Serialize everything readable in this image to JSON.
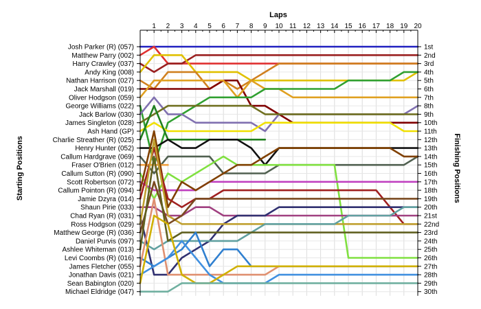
{
  "chart_data": {
    "type": "line",
    "xlabel": "Laps",
    "ylabel_left": "Starting Positions",
    "ylabel_right": "Finishing Positions",
    "x": [
      0,
      1,
      2,
      3,
      4,
      5,
      6,
      7,
      8,
      9,
      10,
      11,
      12,
      13,
      14,
      15,
      16,
      17,
      18,
      19,
      20
    ],
    "x_tick_labels": [
      "1",
      "2",
      "3",
      "4",
      "5",
      "6",
      "7",
      "8",
      "9",
      "10",
      "11",
      "12",
      "13",
      "14",
      "15",
      "16",
      "17",
      "18",
      "19",
      "20"
    ],
    "ylim": [
      1,
      30
    ],
    "y_inverted": true,
    "grid": true,
    "start_labels": [
      "Josh Parker (R) (057)",
      "Matthew Parry (002)",
      "Harry Crawley (037)",
      "Andy King (008)",
      "Nathan Harrison (027)",
      "Jack Marshall (019)",
      "Oliver Hodgson (059)",
      "George Williams (022)",
      "Jack Barlow (030)",
      "James Singleton (028)",
      "Ash Hand (GP)",
      "Charlie Streather (R) (025)",
      "Henry Hunter (052)",
      "Callum Hardgrave (069)",
      "Fraser O'Brien (012)",
      "Callum Sutton  (R) (090)",
      "Scott Robertson (072)",
      "Callum Pointon  (R) (094)",
      "Jamie Dzyra (014)",
      "Shaun Pirie (033)",
      "Chad Ryan (R) (031)",
      "Ross Hodgson (029)",
      "Matthew George (R) (036)",
      "Daniel Purvis (097)",
      "Ashlee Whiteman (013)",
      "Levi Coombs (R) (016)",
      "James Fletcher (055)",
      "Jonathan Davis (021)",
      "Sean Babington (020)",
      "Michael Eldridge (047)"
    ],
    "finish_labels": [
      "1st",
      "2nd",
      "3rd",
      "4th",
      "5th",
      "6th",
      "7th",
      "8th",
      "9th",
      "10th",
      "11th",
      "12th",
      "13th",
      "14th",
      "15th",
      "16th",
      "17th",
      "18th",
      "19th",
      "20th",
      "21st",
      "22nd",
      "23rd",
      "24th",
      "25th",
      "26th",
      "27th",
      "28th",
      "29th",
      "30th"
    ],
    "series": [
      {
        "color": "#2020c0",
        "values": [
          1,
          1,
          1,
          1,
          1,
          1,
          1,
          1,
          1,
          1,
          1,
          1,
          1,
          1,
          1,
          1,
          1,
          1,
          1,
          1,
          1
        ]
      },
      {
        "color": "#e03030",
        "values": [
          2,
          1,
          3,
          3,
          3,
          3,
          3,
          3,
          3,
          3,
          3,
          3,
          3,
          3,
          3,
          3,
          3,
          3,
          3,
          3,
          3
        ]
      },
      {
        "color": "#9a2020",
        "values": [
          3,
          4,
          3,
          3,
          2,
          2,
          2,
          2,
          2,
          2,
          2,
          2,
          2,
          2,
          2,
          2,
          2,
          2,
          2,
          2,
          2
        ]
      },
      {
        "color": "#e0c000",
        "values": [
          4,
          2,
          2,
          2,
          4,
          4,
          4,
          4,
          5,
          5,
          5,
          5,
          5,
          5,
          5,
          5,
          5,
          5,
          5,
          5,
          4
        ]
      },
      {
        "color": "#d08020",
        "values": [
          5,
          6,
          4,
          4,
          4,
          6,
          5,
          6,
          5,
          4,
          3,
          3,
          3,
          3,
          3,
          3,
          3,
          3,
          3,
          3,
          3
        ]
      },
      {
        "color": "#800000",
        "values": [
          6,
          6,
          6,
          6,
          6,
          6,
          5,
          5,
          8,
          8,
          9,
          10,
          10,
          10,
          10,
          10,
          10,
          10,
          10,
          10,
          10
        ]
      },
      {
        "color": "#e0a020",
        "values": [
          7,
          5,
          5,
          5,
          5,
          5,
          5,
          7,
          5,
          6,
          6,
          7,
          7,
          7,
          7,
          7,
          7,
          7,
          7,
          7,
          7
        ]
      },
      {
        "color": "#30a030",
        "values": [
          8,
          15,
          10,
          9,
          8,
          7,
          7,
          7,
          7,
          6,
          6,
          6,
          6,
          6,
          6,
          5,
          5,
          5,
          5,
          4,
          4
        ]
      },
      {
        "color": "#8070b0",
        "values": [
          9,
          7,
          9,
          9,
          10,
          10,
          10,
          10,
          10,
          11,
          9,
          9,
          9,
          9,
          9,
          9,
          9,
          9,
          9,
          9,
          8
        ]
      },
      {
        "color": "#707020",
        "values": [
          10,
          9,
          8,
          8,
          8,
          8,
          8,
          8,
          8,
          9,
          9,
          9,
          9,
          9,
          9,
          9,
          9,
          9,
          9,
          9,
          9
        ]
      },
      {
        "color": "#f0e000",
        "values": [
          11,
          10,
          11,
          11,
          11,
          11,
          11,
          11,
          11,
          10,
          10,
          10,
          10,
          10,
          10,
          10,
          10,
          10,
          10,
          11,
          11
        ]
      },
      {
        "color": "#208020",
        "values": [
          12,
          8,
          12,
          12,
          12,
          12,
          12,
          12,
          12,
          12,
          null,
          null,
          null,
          null,
          null,
          null,
          null,
          null,
          null,
          null,
          null
        ]
      },
      {
        "color": "#101010",
        "values": [
          13,
          13,
          12,
          13,
          13,
          12,
          12,
          12,
          13,
          15,
          13,
          13,
          13,
          13,
          13,
          13,
          13,
          13,
          13,
          13,
          13
        ]
      },
      {
        "color": "#506050",
        "values": [
          14,
          16,
          14,
          14,
          14,
          14,
          16,
          16,
          16,
          16,
          15,
          15,
          15,
          15,
          15,
          15,
          15,
          15,
          15,
          15,
          14
        ]
      },
      {
        "color": "#f0a040",
        "values": [
          15,
          15,
          15,
          null,
          null,
          null,
          null,
          null,
          null,
          null,
          null,
          null,
          null,
          null,
          null,
          null,
          null,
          null,
          null,
          null,
          null
        ]
      },
      {
        "color": "#80e040",
        "values": [
          16,
          19,
          16,
          17,
          16,
          15,
          14,
          15,
          15,
          15,
          15,
          15,
          15,
          15,
          15,
          26,
          26,
          26,
          26,
          26,
          26
        ]
      },
      {
        "color": "#c040c0",
        "values": [
          17,
          18,
          18,
          18,
          18,
          17,
          17,
          17,
          17,
          17,
          17,
          17,
          17,
          17,
          17,
          17,
          17,
          17,
          17,
          17,
          17
        ]
      },
      {
        "color": "#804000",
        "values": [
          18,
          11,
          20,
          17,
          18,
          17,
          16,
          15,
          15,
          14,
          13,
          13,
          13,
          13,
          13,
          13,
          13,
          13,
          13,
          14,
          14
        ]
      },
      {
        "color": "#a02020",
        "values": [
          19,
          13,
          19,
          20,
          19,
          19,
          18,
          18,
          18,
          18,
          18,
          18,
          18,
          18,
          18,
          18,
          18,
          18,
          20,
          22,
          22
        ]
      },
      {
        "color": "#a04080",
        "values": [
          20,
          20,
          21,
          21,
          20,
          20,
          21,
          21,
          21,
          21,
          21,
          21,
          21,
          21,
          21,
          21,
          21,
          21,
          21,
          21,
          21
        ]
      },
      {
        "color": "#303070",
        "values": [
          21,
          28,
          28,
          26,
          25,
          24,
          22,
          21,
          21,
          21,
          20,
          20,
          20,
          20,
          20,
          20,
          20,
          20,
          20,
          20,
          20
        ]
      },
      {
        "color": "#c0a030",
        "values": [
          22,
          12,
          21,
          22,
          22,
          22,
          22,
          22,
          22,
          22,
          22,
          22,
          22,
          22,
          22,
          22,
          22,
          22,
          22,
          22,
          22
        ]
      },
      {
        "color": "#7a4a20",
        "values": [
          23,
          17,
          22,
          21,
          19,
          19,
          19,
          19,
          19,
          19,
          19,
          19,
          19,
          19,
          19,
          19,
          19,
          19,
          19,
          19,
          19
        ]
      },
      {
        "color": "#60a0a0",
        "values": [
          24,
          25,
          24,
          24,
          24,
          24,
          24,
          24,
          23,
          22,
          22,
          22,
          22,
          22,
          22,
          21,
          21,
          21,
          21,
          20,
          20
        ]
      },
      {
        "color": "#606020",
        "values": [
          25,
          14,
          24,
          23,
          23,
          23,
          23,
          23,
          23,
          23,
          23,
          23,
          23,
          23,
          23,
          23,
          23,
          23,
          23,
          23,
          23
        ]
      },
      {
        "color": "#3080d0",
        "values": [
          26,
          27,
          26,
          25,
          23,
          27,
          25,
          25,
          27,
          27,
          27,
          27,
          27,
          27,
          27,
          27,
          27,
          27,
          27,
          27,
          null
        ]
      },
      {
        "color": "#e09070",
        "values": [
          27,
          19,
          28,
          28,
          28,
          28,
          28,
          28,
          28,
          28,
          27,
          27,
          27,
          27,
          27,
          27,
          27,
          27,
          27,
          27,
          27
        ]
      },
      {
        "color": "#4090e0",
        "values": [
          28,
          27,
          26,
          24,
          26,
          28,
          29,
          29,
          29,
          29,
          28,
          28,
          28,
          28,
          28,
          28,
          28,
          28,
          28,
          28,
          28
        ]
      },
      {
        "color": "#d0b000",
        "values": [
          29,
          21,
          22,
          28,
          29,
          29,
          28,
          27,
          27,
          27,
          27,
          27,
          27,
          27,
          27,
          27,
          27,
          27,
          27,
          27,
          27
        ]
      },
      {
        "color": "#70b0a0",
        "values": [
          30,
          30,
          30,
          29,
          29,
          29,
          29,
          29,
          29,
          29,
          29,
          29,
          29,
          29,
          29,
          29,
          29,
          29,
          29,
          29,
          29
        ]
      }
    ]
  }
}
